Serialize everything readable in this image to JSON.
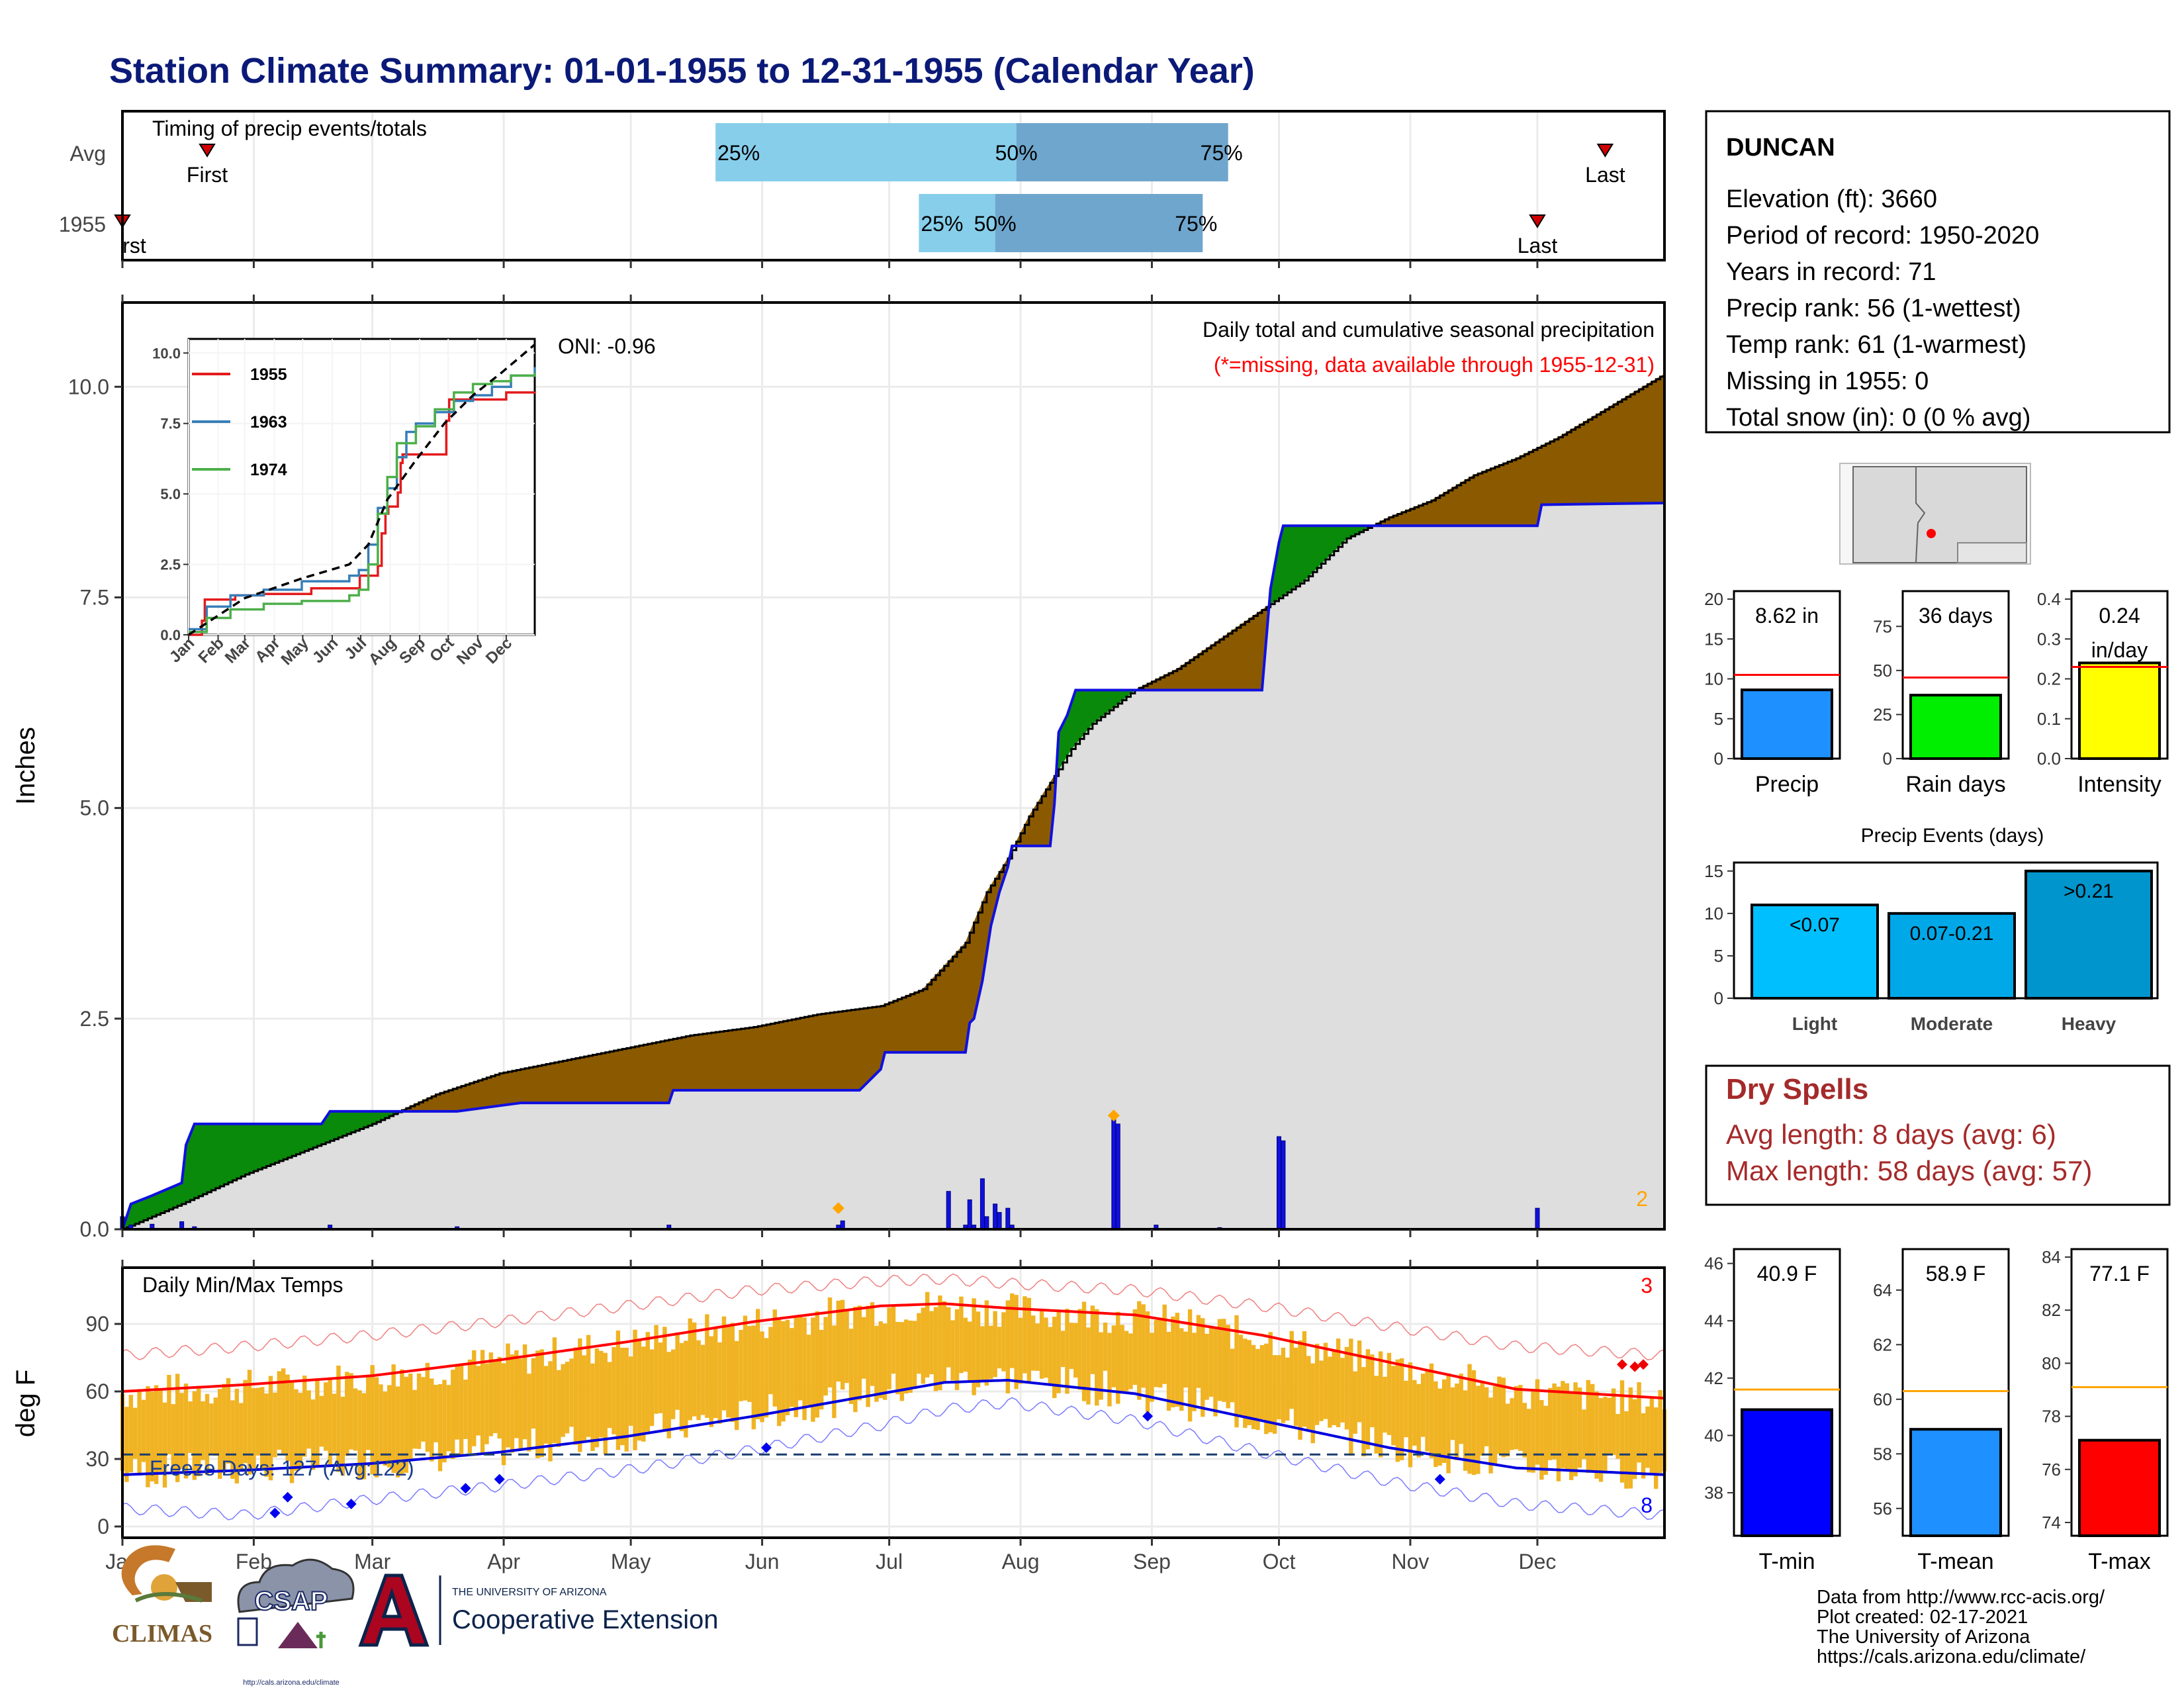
{
  "title": "Station Climate Summary: 01-01-1955 to 12-31-1955 (Calendar Year)",
  "timing": {
    "label": "Timing of precip events/totals",
    "rows": [
      "Avg",
      "1955"
    ],
    "markers": {
      "first": "First",
      "last": "Last",
      "first_cut": "rst"
    },
    "pct": [
      "25%",
      "50%",
      "75%"
    ],
    "avg": {
      "first_doy": 21,
      "p25_doy": 141,
      "p50_doy": 212,
      "p75_doy": 262,
      "last_doy": 351
    },
    "y1955": {
      "first_doy": 1,
      "p25_doy": 189,
      "p50_doy": 207,
      "p75_doy": 256,
      "last_doy": 335
    },
    "colors": {
      "light": "#87ceeb",
      "dark": "#6fa6cd"
    }
  },
  "main": {
    "ylabel": "Inches",
    "yticks": [
      "0.0",
      "2.5",
      "5.0",
      "7.5",
      "10.0"
    ],
    "ytick_values": [
      0,
      2.5,
      5,
      7.5,
      10
    ],
    "oni": "ONI: -0.96",
    "annot1": "Daily total and cumulative seasonal precipitation",
    "annot2": "(*=missing, data available through 1955-12-31)",
    "count_label": "2"
  },
  "chart_data": {
    "type": "area",
    "title": "Daily total and cumulative seasonal precipitation",
    "ylabel": "Inches",
    "ylim": [
      0,
      11
    ],
    "x_unit": "day of year",
    "avg_cumulative": {
      "x": [
        1,
        15,
        30,
        45,
        60,
        75,
        90,
        105,
        120,
        135,
        150,
        165,
        180,
        190,
        200,
        205,
        210,
        215,
        220,
        225,
        230,
        240,
        250,
        260,
        270,
        280,
        290,
        300,
        310,
        320,
        330,
        340,
        350,
        365
      ],
      "y": [
        0.0,
        0.3,
        0.65,
        0.95,
        1.25,
        1.6,
        1.85,
        2.0,
        2.15,
        2.3,
        2.4,
        2.55,
        2.65,
        2.85,
        3.4,
        4.0,
        4.4,
        4.9,
        5.3,
        5.7,
        6.0,
        6.4,
        6.65,
        7.0,
        7.35,
        7.7,
        8.2,
        8.45,
        8.65,
        8.95,
        9.15,
        9.4,
        9.7,
        10.15
      ]
    },
    "y1955_cumulative": {
      "x": [
        1,
        3,
        8,
        15,
        16,
        18,
        48,
        50,
        80,
        95,
        130,
        131,
        175,
        180,
        181,
        185,
        200,
        201,
        202,
        204,
        206,
        208,
        210,
        211,
        220,
        221,
        222,
        224,
        226,
        270,
        271,
        272,
        274,
        275,
        276,
        335,
        336,
        365
      ],
      "y": [
        0.0,
        0.3,
        0.4,
        0.55,
        1.0,
        1.25,
        1.25,
        1.4,
        1.4,
        1.5,
        1.5,
        1.65,
        1.65,
        1.9,
        2.1,
        2.1,
        2.1,
        2.45,
        2.5,
        2.95,
        3.6,
        4.0,
        4.3,
        4.55,
        4.55,
        5.05,
        5.9,
        6.1,
        6.4,
        6.4,
        7.0,
        7.6,
        8.15,
        8.35,
        8.35,
        8.35,
        8.6,
        8.62
      ]
    },
    "daily_precip": {
      "x": [
        1,
        3,
        8,
        15,
        18,
        50,
        80,
        130,
        170,
        171,
        196,
        200,
        201,
        202,
        204,
        205,
        207,
        208,
        210,
        211,
        235,
        236,
        245,
        260,
        274,
        275,
        335
      ],
      "y": [
        0.15,
        0.05,
        0.06,
        0.09,
        0.03,
        0.05,
        0.03,
        0.05,
        0.05,
        0.1,
        0.45,
        0.05,
        0.35,
        0.05,
        0.6,
        0.15,
        0.3,
        0.2,
        0.25,
        0.05,
        1.3,
        1.25,
        0.05,
        0.02,
        1.1,
        1.05,
        0.25
      ]
    },
    "missing_markers": [
      {
        "x": 170,
        "y": 0.25
      },
      {
        "x": 235,
        "y": 1.35
      }
    ],
    "inset": {
      "series": [
        {
          "name": "1955",
          "color": "#e31a1c",
          "x": [
            1,
            15,
            18,
            50,
            80,
            130,
            175,
            181,
            200,
            204,
            208,
            211,
            221,
            224,
            226,
            270,
            272,
            275,
            335,
            365
          ],
          "y": [
            0.0,
            0.5,
            1.25,
            1.4,
            1.45,
            1.65,
            1.65,
            2.1,
            2.45,
            3.6,
            4.3,
            4.55,
            5.05,
            6.1,
            6.4,
            6.4,
            7.6,
            8.35,
            8.6,
            8.62
          ]
        },
        {
          "name": "1963",
          "color": "#377eb8",
          "x": [
            1,
            20,
            45,
            80,
            120,
            170,
            180,
            190,
            200,
            210,
            220,
            230,
            240,
            260,
            280,
            300,
            320,
            340,
            365
          ],
          "y": [
            0.2,
            1.0,
            1.4,
            1.6,
            1.9,
            2.1,
            2.3,
            3.2,
            4.5,
            5.2,
            6.3,
            7.2,
            7.5,
            7.9,
            8.3,
            8.5,
            8.8,
            9.2,
            9.5
          ]
        },
        {
          "name": "1974",
          "color": "#4daf4a",
          "x": [
            1,
            20,
            45,
            80,
            120,
            170,
            180,
            190,
            200,
            210,
            220,
            240,
            260,
            280,
            300,
            320,
            340,
            365
          ],
          "y": [
            0.1,
            0.6,
            0.9,
            1.1,
            1.2,
            1.4,
            1.6,
            2.5,
            4.3,
            5.6,
            6.8,
            7.4,
            8.0,
            8.6,
            8.9,
            9.0,
            9.2,
            9.3
          ]
        }
      ],
      "avg": {
        "x": [
          1,
          60,
          120,
          170,
          190,
          210,
          240,
          270,
          300,
          330,
          365
        ],
        "y": [
          0.0,
          1.3,
          2.0,
          2.5,
          3.2,
          4.8,
          6.2,
          7.5,
          8.5,
          9.3,
          10.3
        ]
      },
      "yticks": [
        "0.0",
        "2.5",
        "5.0",
        "7.5",
        "10.0"
      ],
      "ylim": [
        0,
        10
      ]
    },
    "temperature": {
      "title": "Daily Min/Max Temps",
      "ylabel": "deg F",
      "ylim": [
        -5,
        115
      ],
      "yticks": [
        "0",
        "30",
        "60",
        "90"
      ],
      "avg_max": {
        "x": [
          1,
          30,
          60,
          90,
          120,
          150,
          180,
          195,
          210,
          240,
          270,
          300,
          330,
          365
        ],
        "y": [
          60,
          63,
          67,
          74,
          82,
          91,
          98,
          99,
          97,
          94,
          85,
          73,
          61,
          57
        ]
      },
      "avg_min": {
        "x": [
          1,
          30,
          60,
          90,
          120,
          150,
          180,
          195,
          210,
          240,
          270,
          300,
          330,
          365
        ],
        "y": [
          23,
          25,
          28,
          33,
          40,
          49,
          59,
          64,
          65,
          59,
          47,
          35,
          26,
          23
        ]
      },
      "rec_max": {
        "x": [
          1,
          30,
          60,
          90,
          120,
          150,
          180,
          195,
          210,
          240,
          270,
          300,
          330,
          365
        ],
        "y": [
          76,
          80,
          85,
          91,
          98,
          105,
          109,
          110,
          108,
          105,
          98,
          89,
          80,
          76
        ]
      },
      "rec_min": {
        "x": [
          1,
          30,
          60,
          90,
          120,
          150,
          180,
          195,
          210,
          240,
          270,
          300,
          330,
          365
        ],
        "y": [
          8,
          5,
          12,
          18,
          25,
          34,
          45,
          52,
          55,
          47,
          33,
          20,
          10,
          5
        ]
      },
      "freeze_line": 32,
      "freeze_label": "Freeze Days: 127 (Avg:122)",
      "count_top": "3",
      "count_bottom": "8",
      "min_markers": [
        {
          "x": 37,
          "y": 6
        },
        {
          "x": 40,
          "y": 13
        },
        {
          "x": 55,
          "y": 10
        },
        {
          "x": 82,
          "y": 17
        },
        {
          "x": 90,
          "y": 21
        },
        {
          "x": 153,
          "y": 35
        },
        {
          "x": 243,
          "y": 49
        },
        {
          "x": 312,
          "y": 21
        }
      ],
      "max_markers": [
        {
          "x": 355,
          "y": 72
        },
        {
          "x": 358,
          "y": 71
        },
        {
          "x": 360,
          "y": 72
        }
      ]
    },
    "months": [
      "Jan",
      "Feb",
      "Mar",
      "Apr",
      "May",
      "Jun",
      "Jul",
      "Aug",
      "Sep",
      "Oct",
      "Nov",
      "Dec"
    ],
    "month_start_doy": [
      1,
      32,
      60,
      91,
      121,
      152,
      182,
      213,
      244,
      274,
      305,
      335
    ]
  },
  "station": {
    "name": "DUNCAN",
    "lines": [
      "Elevation (ft): 3660",
      "Period of record: 1950-2020",
      "Years in record: 71",
      "Precip rank: 56 (1-wettest)",
      "Temp rank: 61 (1-warmest)",
      "Missing in 1955: 0",
      "Total snow (in): 0 (0 % avg)"
    ]
  },
  "bars": {
    "precip": {
      "label": "Precip",
      "value_text": "8.62 in",
      "value": 8.62,
      "avg": 10.5,
      "max": 21,
      "yticks": [
        "0",
        "5",
        "10",
        "15",
        "20"
      ],
      "color": "#1e90ff"
    },
    "raindays": {
      "label": "Rain days",
      "value_text": "36 days",
      "value": 36,
      "avg": 46,
      "max": 95,
      "yticks": [
        "0",
        "25",
        "50",
        "75"
      ],
      "color": "#00ee00"
    },
    "intensity": {
      "label": "Intensity",
      "value_text": "0.24",
      "value_text2": "in/day",
      "value": 0.24,
      "avg": 0.23,
      "max": 0.42,
      "yticks": [
        "0.0",
        "0.1",
        "0.2",
        "0.3",
        "0.4"
      ],
      "color": "#ffff00"
    }
  },
  "events": {
    "title": "Precip Events (days)",
    "yticks": [
      "0",
      "5",
      "10",
      "15"
    ],
    "ymax": 16,
    "categories": [
      "Light",
      "Moderate",
      "Heavy"
    ],
    "labels": [
      "<0.07",
      "0.07-0.21",
      ">0.21"
    ],
    "values": [
      11,
      10,
      15
    ],
    "colors": [
      "#00bfff",
      "#00a8e8",
      "#0095cc"
    ]
  },
  "dryspells": {
    "title": "Dry Spells",
    "line1": "Avg length: 8 days (avg: 6)",
    "line2": "Max length: 58 days (avg: 57)"
  },
  "temps": {
    "tmin": {
      "label": "T-min",
      "value_text": "40.9 F",
      "value": 40.9,
      "avg": 41.6,
      "min": 36.5,
      "max": 46.5,
      "yticks": [
        "38",
        "40",
        "42",
        "44",
        "46"
      ],
      "ytick_values": [
        38,
        40,
        42,
        44,
        46
      ],
      "color": "#0000ff"
    },
    "tmean": {
      "label": "T-mean",
      "value_text": "58.9 F",
      "value": 58.9,
      "avg": 60.3,
      "min": 55.0,
      "max": 65.5,
      "yticks": [
        "56",
        "58",
        "60",
        "62",
        "64"
      ],
      "ytick_values": [
        56,
        58,
        60,
        62,
        64
      ],
      "color": "#1e90ff"
    },
    "tmax": {
      "label": "T-max",
      "value_text": "77.1 F",
      "value": 77.1,
      "avg": 79.1,
      "min": 73.5,
      "max": 84.3,
      "yticks": [
        "74",
        "76",
        "78",
        "80",
        "82",
        "84"
      ],
      "ytick_values": [
        74,
        76,
        78,
        80,
        82,
        84
      ],
      "color": "#ff0000"
    }
  },
  "footer": {
    "lines": [
      "Data from http://www.rcc-acis.org/",
      "Plot created: 02-17-2021",
      "The University of Arizona",
      "https://cals.arizona.edu/climate/"
    ],
    "climas": "CLIMAS",
    "csap": "CSAP",
    "csap_url": "http://cals.arizona.edu/climate",
    "ua_small": "THE UNIVERSITY OF ARIZONA",
    "ua_big": "Cooperative Extension"
  }
}
